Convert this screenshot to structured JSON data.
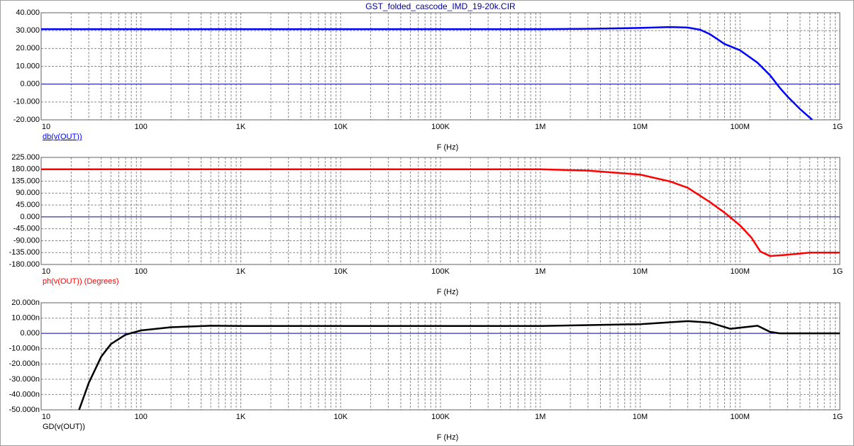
{
  "title": "GST_folded_cascode_IMD_19-20k.CIR",
  "chart_data": [
    {
      "type": "line",
      "x_label": "F (Hz)",
      "y_label": "db(v(OUT))",
      "color": "#0000ff",
      "xlog": true,
      "grid": true,
      "minor_grid": true,
      "xlim": [
        10,
        1000000000
      ],
      "xticks": [
        10,
        100,
        {
          "value": 1000,
          "label": "1K"
        },
        {
          "value": 10000,
          "label": "10K"
        },
        {
          "value": 100000,
          "label": "100K"
        },
        {
          "value": 1000000,
          "label": "1M"
        },
        {
          "value": 10000000,
          "label": "10M"
        },
        {
          "value": 100000000,
          "label": "100M"
        },
        {
          "value": 1000000000,
          "label": "1G"
        }
      ],
      "ylim": [
        -20,
        40
      ],
      "yticks": [
        {
          "value": 40,
          "label": "40.000"
        },
        {
          "value": 30,
          "label": "30.000"
        },
        {
          "value": 20,
          "label": "20.000"
        },
        {
          "value": 10,
          "label": "10.000"
        },
        {
          "value": 0,
          "label": "0.000"
        },
        {
          "value": -10,
          "label": "-10.000"
        },
        {
          "value": -20,
          "label": "-20.000"
        }
      ],
      "x": [
        10,
        100,
        1000,
        10000,
        100000,
        1000000,
        3000000,
        10000000,
        20000000,
        30000000,
        40000000,
        50000000,
        70000000,
        100000000,
        150000000,
        200000000,
        250000000,
        300000000,
        400000000,
        530000000
      ],
      "values": [
        30.8,
        30.8,
        30.8,
        30.8,
        30.8,
        30.8,
        31,
        31.5,
        32,
        31.7,
        30.5,
        28,
        22.5,
        19,
        12,
        5,
        -2,
        -7,
        -14,
        -20
      ]
    },
    {
      "type": "line",
      "x_label": "F (Hz)",
      "y_label": "ph(v(OUT)) (Degrees)",
      "color": "#ff0000",
      "xlog": true,
      "grid": true,
      "minor_grid": true,
      "xlim": [
        10,
        1000000000
      ],
      "xticks": [
        10,
        100,
        {
          "value": 1000,
          "label": "1K"
        },
        {
          "value": 10000,
          "label": "10K"
        },
        {
          "value": 100000,
          "label": "100K"
        },
        {
          "value": 1000000,
          "label": "1M"
        },
        {
          "value": 10000000,
          "label": "10M"
        },
        {
          "value": 100000000,
          "label": "100M"
        },
        {
          "value": 1000000000,
          "label": "1G"
        }
      ],
      "ylim": [
        -180,
        225
      ],
      "yticks": [
        {
          "value": 225,
          "label": "225.000"
        },
        {
          "value": 180,
          "label": "180.000"
        },
        {
          "value": 135,
          "label": "135.000"
        },
        {
          "value": 90,
          "label": "90.000"
        },
        {
          "value": 45,
          "label": "45.000"
        },
        {
          "value": 0,
          "label": "0.000"
        },
        {
          "value": -45,
          "label": "-45.000"
        },
        {
          "value": -90,
          "label": "-90.000"
        },
        {
          "value": -135,
          "label": "-135.000"
        },
        {
          "value": -180,
          "label": "-180.000"
        }
      ],
      "x": [
        10,
        100,
        1000,
        10000,
        100000,
        1000000,
        3000000,
        10000000,
        20000000,
        30000000,
        50000000,
        70000000,
        100000000,
        130000000,
        160000000,
        200000000,
        300000000,
        500000000,
        1000000000
      ],
      "values": [
        180,
        180,
        180,
        180,
        180,
        180,
        175,
        160,
        134,
        110,
        56,
        16,
        -32,
        -78,
        -131,
        -148,
        -143,
        -135,
        -135
      ]
    },
    {
      "type": "line",
      "x_label": "F (Hz)",
      "y_label": "GD(v(OUT))",
      "color": "#000000",
      "xlog": true,
      "grid": true,
      "minor_grid": true,
      "xlim": [
        10,
        1000000000
      ],
      "xticks": [
        10,
        100,
        {
          "value": 1000,
          "label": "1K"
        },
        {
          "value": 10000,
          "label": "10K"
        },
        {
          "value": 100000,
          "label": "100K"
        },
        {
          "value": 1000000,
          "label": "1M"
        },
        {
          "value": 10000000,
          "label": "10M"
        },
        {
          "value": 100000000,
          "label": "100M"
        },
        {
          "value": 1000000000,
          "label": "1G"
        }
      ],
      "ylim": [
        -5e-08,
        2e-08
      ],
      "yticks": [
        {
          "value": 2e-08,
          "label": "20.000n"
        },
        {
          "value": 1e-08,
          "label": "10.000n"
        },
        {
          "value": 0,
          "label": "0.000"
        },
        {
          "value": -1e-08,
          "label": "-10.000n"
        },
        {
          "value": -2e-08,
          "label": "-20.000n"
        },
        {
          "value": -3e-08,
          "label": "-30.000n"
        },
        {
          "value": -4e-08,
          "label": "-40.000n"
        },
        {
          "value": -5e-08,
          "label": "-50.000n"
        }
      ],
      "x": [
        24,
        30,
        40,
        50,
        70,
        100,
        200,
        500,
        1000,
        1000000,
        10000000,
        30000000,
        50000000,
        80000000,
        150000000,
        200000000,
        250000000,
        1000000000
      ],
      "values": [
        -5e-08,
        -3.24e-08,
        -1.52e-08,
        -7e-09,
        -9e-10,
        1.9e-09,
        4e-09,
        5e-09,
        4.8e-09,
        4.8e-09,
        6e-09,
        8e-09,
        7e-09,
        3e-09,
        5e-09,
        1e-09,
        0,
        0
      ]
    }
  ]
}
